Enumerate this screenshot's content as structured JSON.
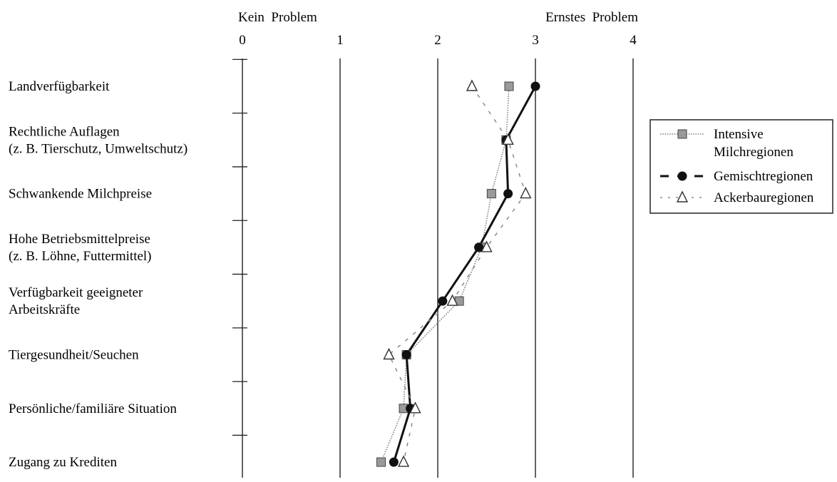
{
  "chart_data": {
    "type": "line",
    "orientation": "horizontal-values",
    "scale_left_label": "Kein  Problem",
    "scale_right_label": "Ernstes  Problem",
    "xlim": [
      0,
      4
    ],
    "x_ticks": [
      "0",
      "1",
      "2",
      "3",
      "4"
    ],
    "grid": true,
    "legend_position": "right",
    "categories": [
      "Landverfügbarkeit",
      "Rechtliche Auflagen\n(z. B. Tierschutz, Umweltschutz)",
      "Schwankende Milchpreise",
      "Hohe Betriebsmittelpreise\n(z. B. Löhne, Futtermittel)",
      "Verfügbarkeit geeigneter\nArbeitskräfte",
      "Tiergesundheit/Seuchen",
      "Persönliche/familiäre Situation",
      "Zugang zu Krediten"
    ],
    "series": [
      {
        "name": "Intensive\nMilchregionen",
        "marker": "square",
        "line": "dotted-thin",
        "color": "#7a7a7a",
        "values": [
          2.73,
          2.7,
          2.55,
          2.45,
          2.22,
          1.68,
          1.65,
          1.42
        ]
      },
      {
        "name": "Gemischtregionen",
        "marker": "circle",
        "line": "solid-thick",
        "color": "#111111",
        "values": [
          3.0,
          2.7,
          2.72,
          2.42,
          2.05,
          1.68,
          1.72,
          1.55
        ]
      },
      {
        "name": "Ackerbauregionen",
        "marker": "triangle",
        "line": "dashed-thin",
        "color": "#888888",
        "values": [
          2.35,
          2.72,
          2.9,
          2.5,
          2.15,
          1.5,
          1.77,
          1.65
        ]
      }
    ]
  }
}
